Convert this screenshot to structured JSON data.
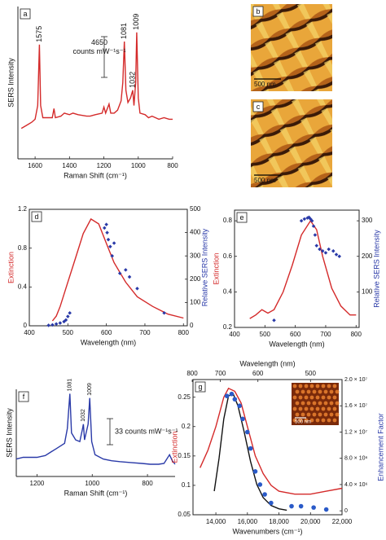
{
  "chart_data": [
    {
      "type": "line",
      "panel_label": "a",
      "frame": "axes",
      "xlabel": "Raman Shift (cm⁻¹)",
      "ylabel": "SERS Intensity",
      "xlim": [
        1700,
        800
      ],
      "xticks": [
        1600,
        1400,
        1200,
        1000,
        800
      ],
      "ylim": [
        0,
        100
      ],
      "series": [
        {
          "style": "line",
          "color": "#d42a2a",
          "x": [
            1680,
            1650,
            1620,
            1600,
            1585,
            1575,
            1568,
            1555,
            1530,
            1500,
            1490,
            1482,
            1450,
            1430,
            1400,
            1380,
            1350,
            1300,
            1280,
            1250,
            1210,
            1200,
            1190,
            1170,
            1160,
            1140,
            1120,
            1100,
            1090,
            1081,
            1072,
            1060,
            1045,
            1032,
            1025,
            1015,
            1009,
            1000,
            990,
            960,
            940,
            920,
            880,
            850,
            820,
            800
          ],
          "values": [
            20,
            22,
            24,
            26,
            35,
            75,
            35,
            27,
            27,
            27,
            33,
            27,
            28,
            30,
            29,
            30,
            29,
            28,
            28,
            29,
            30,
            34,
            30,
            36,
            30,
            30,
            32,
            38,
            50,
            77,
            45,
            37,
            40,
            45,
            35,
            50,
            83,
            40,
            30,
            29,
            27,
            28,
            26,
            27,
            26,
            26
          ]
        }
      ],
      "peak_labels": [
        1575,
        1081,
        1032,
        1009
      ],
      "scale_bar": [
        "4650",
        "counts mW⁻¹s⁻¹"
      ]
    },
    {
      "type": "line",
      "panel_label": "d",
      "frame": "box",
      "xlabel": "Wavelength (nm)",
      "ylabel": "Extinction",
      "ylabel_color": "#d42a2a",
      "y2label": "Relative SERS Intensity",
      "y2label_color": "#2a3aa8",
      "xlim": [
        400,
        810
      ],
      "xticks": [
        400,
        500,
        600,
        700,
        800
      ],
      "ylim": [
        0,
        1.2
      ],
      "yticks": [
        0,
        0.4,
        0.8,
        1.2
      ],
      "y2lim": [
        0,
        500
      ],
      "y2ticks": [
        0,
        100,
        200,
        300,
        400,
        500
      ],
      "series": [
        {
          "style": "line",
          "color": "#d42a2a",
          "x": [
            460,
            470,
            480,
            500,
            520,
            540,
            560,
            580,
            600,
            620,
            650,
            680,
            720,
            760,
            800
          ],
          "values": [
            0.05,
            0.1,
            0.2,
            0.45,
            0.7,
            0.95,
            1.1,
            1.05,
            0.85,
            0.65,
            0.45,
            0.3,
            0.2,
            0.12,
            0.08
          ]
        },
        {
          "style": "markers",
          "marker": "diamond",
          "color": "#2a3aa8",
          "axis": "y2",
          "x": [
            450,
            460,
            470,
            480,
            490,
            495,
            500,
            505,
            595,
            600,
            602,
            605,
            610,
            615,
            620,
            635,
            650,
            660,
            680,
            750
          ],
          "values": [
            2,
            4,
            8,
            12,
            18,
            25,
            40,
            55,
            420,
            435,
            400,
            370,
            340,
            300,
            355,
            225,
            240,
            210,
            160,
            55
          ]
        }
      ]
    },
    {
      "type": "line",
      "panel_label": "e",
      "frame": "box",
      "xlabel": "Wavelength (nm)",
      "ylabel": "Extinction",
      "ylabel_color": "#d42a2a",
      "y2label": "Relative SERS Intensity",
      "y2label_color": "#2a3aa8",
      "xlim": [
        400,
        810
      ],
      "xticks": [
        400,
        500,
        600,
        700,
        800
      ],
      "ylim": [
        0.2,
        0.86
      ],
      "yticks": [
        0.2,
        0.4,
        0.6,
        0.8
      ],
      "y2lim": [
        0,
        330
      ],
      "y2ticks": [
        100,
        200,
        300
      ],
      "series": [
        {
          "style": "line",
          "color": "#d42a2a",
          "x": [
            450,
            470,
            490,
            500,
            510,
            530,
            560,
            590,
            620,
            650,
            670,
            690,
            720,
            750,
            780,
            800
          ],
          "values": [
            0.25,
            0.27,
            0.3,
            0.29,
            0.28,
            0.3,
            0.4,
            0.55,
            0.72,
            0.8,
            0.75,
            0.6,
            0.42,
            0.32,
            0.27,
            0.27
          ]
        },
        {
          "style": "markers",
          "marker": "diamond",
          "color": "#2a3aa8",
          "axis": "y2",
          "x": [
            530,
            620,
            630,
            640,
            645,
            650,
            655,
            660,
            665,
            670,
            680,
            690,
            700,
            710,
            725,
            735,
            745
          ],
          "values": [
            20,
            300,
            305,
            308,
            310,
            305,
            300,
            285,
            260,
            230,
            220,
            215,
            210,
            220,
            215,
            205,
            200
          ]
        }
      ]
    },
    {
      "type": "line",
      "panel_label": "f",
      "frame": "axes",
      "xlabel": "Raman Shift (cm⁻¹)",
      "ylabel": "SERS Intensity",
      "xlim": [
        1275,
        700
      ],
      "xticks": [
        1200,
        1000,
        800
      ],
      "ylim": [
        0,
        100
      ],
      "series": [
        {
          "style": "line",
          "color": "#2a3aa8",
          "x": [
            1275,
            1250,
            1200,
            1170,
            1150,
            1130,
            1100,
            1090,
            1081,
            1075,
            1060,
            1045,
            1035,
            1032,
            1028,
            1015,
            1009,
            1002,
            990,
            960,
            930,
            900,
            860,
            820,
            790,
            760,
            740,
            720,
            710,
            700
          ],
          "values": [
            20,
            22,
            22,
            24,
            28,
            32,
            38,
            55,
            95,
            50,
            42,
            40,
            55,
            60,
            42,
            60,
            90,
            40,
            25,
            20,
            18,
            17,
            16,
            15,
            14,
            14,
            15,
            25,
            18,
            14
          ]
        }
      ],
      "peak_labels": [
        1081,
        1032,
        1009
      ],
      "scale_bar": [
        "33 counts mW⁻¹s⁻¹"
      ]
    },
    {
      "type": "line",
      "panel_label": "g",
      "frame": "box",
      "xlabel": "Wavenumbers (cm⁻¹)",
      "x2label": "Wavelength (nm)",
      "ylabel": "Extinction",
      "ylabel_color": "#d42a2a",
      "y2label": "Enhancement Factor",
      "y2label_color": "#2a3aa8",
      "xlim": [
        12550,
        22000
      ],
      "xticks": [
        {
          "value": 14000,
          "label": "14,000"
        },
        {
          "value": 16000,
          "label": "16,000"
        },
        {
          "value": 18000,
          "label": "18,000"
        },
        {
          "value": 20000,
          "label": "20,000"
        },
        {
          "value": 22000,
          "label": "22,000"
        }
      ],
      "x2ticks": [
        800,
        700,
        600,
        500
      ],
      "ylim": [
        0.05,
        0.28
      ],
      "yticks": [
        0.05,
        0.1,
        0.15,
        0.2,
        0.25
      ],
      "y2lim": [
        -600000,
        20000000
      ],
      "y2ticks": [
        0,
        {
          "value": 4000000,
          "label": "4.0 × 10⁶"
        },
        {
          "value": 8000000,
          "label": "8.0 × 10⁶"
        },
        {
          "value": 12000000,
          "label": "1.2 × 10⁷"
        },
        {
          "value": 16000000,
          "label": "1.6 × 10⁷"
        },
        {
          "value": 20000000,
          "label": "2.0 × 10⁷"
        }
      ],
      "series": [
        {
          "style": "line",
          "color": "#d42a2a",
          "x": [
            13000,
            13500,
            14000,
            14500,
            14800,
            15200,
            15600,
            16000,
            16500,
            17000,
            17500,
            18000,
            19000,
            20000,
            21000,
            22000
          ],
          "values": [
            0.13,
            0.16,
            0.2,
            0.25,
            0.265,
            0.26,
            0.24,
            0.2,
            0.15,
            0.12,
            0.1,
            0.09,
            0.085,
            0.085,
            0.09,
            0.095
          ]
        },
        {
          "style": "line",
          "color": "#111111",
          "axis": "y2",
          "x": [
            13900,
            14200,
            14500,
            14800,
            15100,
            15400,
            15800,
            16200,
            16600,
            17000,
            17500,
            18000,
            18500
          ],
          "values": [
            3000000,
            8000000,
            14000000,
            17500000,
            17800000,
            16000000,
            12000000,
            7500000,
            4000000,
            2000000,
            800000,
            300000,
            100000
          ]
        },
        {
          "style": "markers",
          "marker": "circle",
          "color": "#2a5ac8",
          "axis": "y2",
          "x": [
            14700,
            15000,
            15200,
            15500,
            15700,
            16000,
            16200,
            16500,
            16800,
            17100,
            17500,
            18800,
            19400,
            20200,
            21000
          ],
          "values": [
            17500000,
            17800000,
            17000000,
            16000000,
            14000000,
            12000000,
            9500000,
            6000000,
            4000000,
            2500000,
            1200000,
            700000,
            700000,
            500000,
            200000
          ]
        }
      ],
      "inset_scale_bar": "500 nm"
    }
  ],
  "images": [
    {
      "label": "b",
      "scale_bar": "500 nm"
    },
    {
      "label": "c",
      "scale_bar": "500 nm"
    }
  ]
}
